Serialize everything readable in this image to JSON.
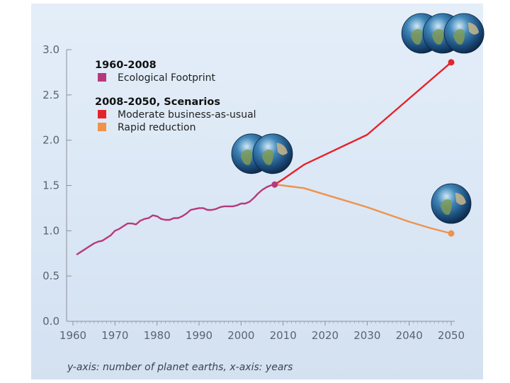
{
  "chart_data": {
    "type": "line",
    "title": "",
    "caption": "y-axis: number of planet earths, x-axis: years",
    "xlim": [
      1960,
      2050
    ],
    "ylim": [
      0,
      3.0
    ],
    "x_ticks": [
      1960,
      1970,
      1980,
      1990,
      2000,
      2010,
      2020,
      2030,
      2040,
      2050
    ],
    "y_ticks": [
      "0.0",
      "0.5",
      "1.0",
      "1.5",
      "2.0",
      "2.5",
      "3.0"
    ],
    "grid": false,
    "legend_position": "top-left",
    "legend_groups": [
      {
        "heading": "1960-2008",
        "entries": [
          {
            "label": "Ecological Footprint",
            "color": "#b7397d"
          }
        ]
      },
      {
        "heading": "2008-2050, Scenarios",
        "entries": [
          {
            "label": "Moderate business-as-usual",
            "color": "#e5232b"
          },
          {
            "label": "Rapid reduction",
            "color": "#f0924a"
          }
        ]
      }
    ],
    "series": [
      {
        "name": "Ecological Footprint",
        "color": "#b7397d",
        "x": [
          1961,
          1962,
          1963,
          1964,
          1965,
          1966,
          1967,
          1968,
          1969,
          1970,
          1971,
          1972,
          1973,
          1974,
          1975,
          1976,
          1977,
          1978,
          1979,
          1980,
          1981,
          1982,
          1983,
          1984,
          1985,
          1986,
          1987,
          1988,
          1989,
          1990,
          1991,
          1992,
          1993,
          1994,
          1995,
          1996,
          1997,
          1998,
          1999,
          2000,
          2001,
          2002,
          2003,
          2004,
          2005,
          2006,
          2007,
          2008
        ],
        "y": [
          0.74,
          0.77,
          0.8,
          0.83,
          0.86,
          0.88,
          0.89,
          0.92,
          0.95,
          1.0,
          1.02,
          1.05,
          1.08,
          1.08,
          1.07,
          1.11,
          1.13,
          1.14,
          1.17,
          1.16,
          1.13,
          1.12,
          1.12,
          1.14,
          1.14,
          1.16,
          1.19,
          1.23,
          1.24,
          1.25,
          1.25,
          1.23,
          1.23,
          1.24,
          1.26,
          1.27,
          1.27,
          1.27,
          1.28,
          1.3,
          1.3,
          1.32,
          1.36,
          1.41,
          1.45,
          1.48,
          1.5,
          1.51
        ]
      },
      {
        "name": "Moderate business-as-usual",
        "color": "#e5232b",
        "x": [
          2008,
          2010,
          2015,
          2020,
          2025,
          2030,
          2035,
          2040,
          2045,
          2050
        ],
        "y": [
          1.51,
          1.57,
          1.73,
          1.84,
          1.95,
          2.06,
          2.26,
          2.46,
          2.66,
          2.86
        ]
      },
      {
        "name": "Rapid reduction",
        "color": "#f0924a",
        "x": [
          2008,
          2010,
          2015,
          2020,
          2025,
          2030,
          2035,
          2040,
          2045,
          2050
        ],
        "y": [
          1.51,
          1.5,
          1.47,
          1.4,
          1.33,
          1.26,
          1.18,
          1.1,
          1.03,
          0.97
        ]
      }
    ],
    "endpoint_markers": [
      {
        "series": "Ecological Footprint",
        "x": 2008,
        "y": 1.51
      },
      {
        "series": "Moderate business-as-usual",
        "x": 2050,
        "y": 2.86
      },
      {
        "series": "Rapid reduction",
        "x": 2050,
        "y": 0.97
      }
    ],
    "earth_icons": [
      {
        "name": "earths-2008",
        "count": 2,
        "x": 2005,
        "y": 1.85
      },
      {
        "name": "earths-2050-high",
        "count": 3,
        "x": 2048,
        "y": 3.18
      },
      {
        "name": "earths-2050-low",
        "count": 1,
        "x": 2050,
        "y": 1.3
      }
    ]
  }
}
